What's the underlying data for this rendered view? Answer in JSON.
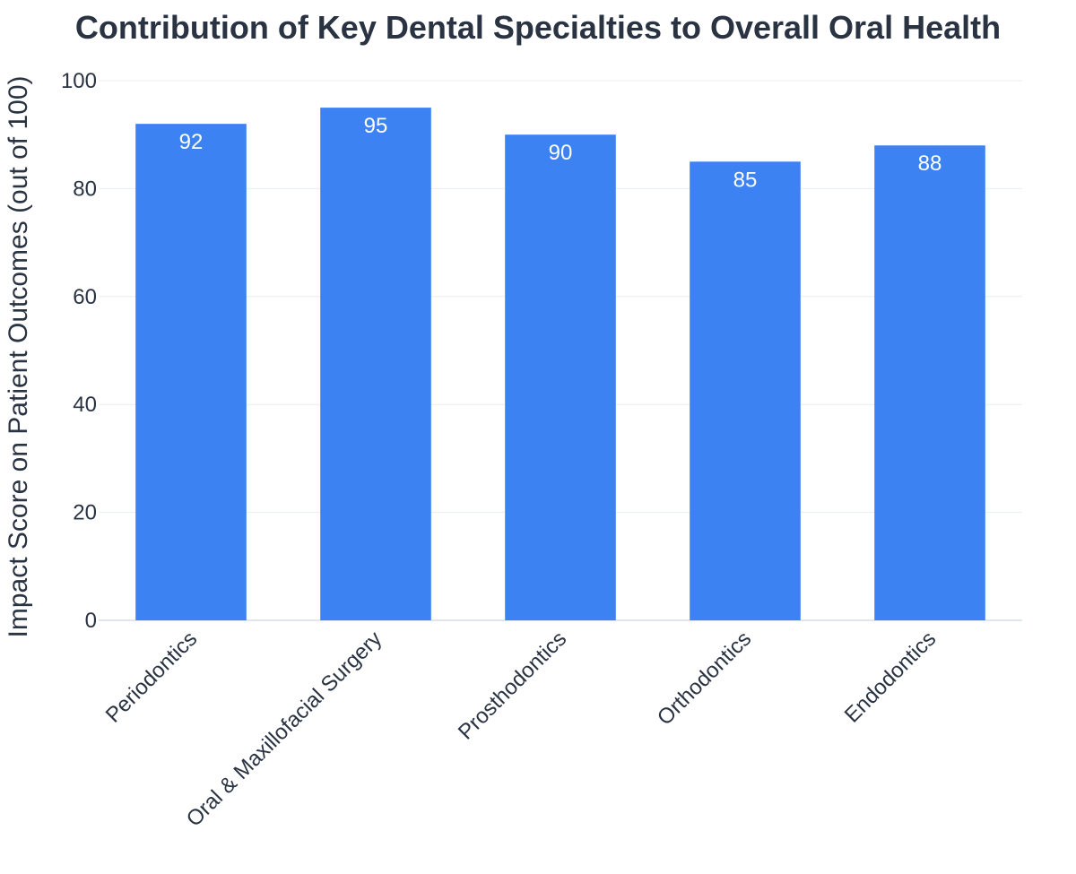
{
  "chart_data": {
    "type": "bar",
    "title": "Contribution of Key Dental Specialties to Overall Oral Health",
    "xlabel": "",
    "ylabel": "Impact Score on Patient Outcomes (out of 100)",
    "categories": [
      "Periodontics",
      "Oral & Maxillofacial Surgery",
      "Prosthodontics",
      "Orthodontics",
      "Endodontics"
    ],
    "values": [
      92,
      95,
      90,
      85,
      88
    ],
    "ylim": [
      0,
      100
    ],
    "yticks": [
      0,
      20,
      40,
      60,
      80,
      100
    ],
    "grid": true,
    "legend": "none",
    "colors": {
      "bar": "#3d82f3",
      "grid": "#e9eef3",
      "axis": "#dfe6ee",
      "text": "#2a3342",
      "data_label": "#ffffff"
    }
  }
}
